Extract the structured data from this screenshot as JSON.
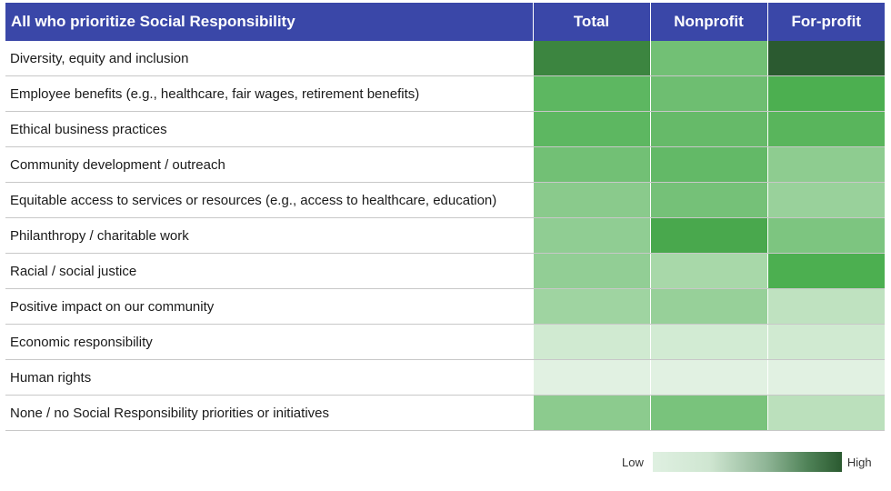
{
  "chart_data": {
    "type": "heatmap",
    "title": "All who prioritize Social Responsibility",
    "columns": [
      "Total",
      "Nonprofit",
      "For-profit"
    ],
    "rows": [
      {
        "label": "Diversity, equity and inclusion",
        "values": [
          0.88,
          0.58,
          1.0
        ]
      },
      {
        "label": "Employee benefits (e.g., healthcare, fair wages, retirement benefits)",
        "values": [
          0.68,
          0.6,
          0.76
        ]
      },
      {
        "label": "Ethical business practices",
        "values": [
          0.68,
          0.64,
          0.7
        ]
      },
      {
        "label": "Community development / outreach",
        "values": [
          0.58,
          0.65,
          0.45
        ]
      },
      {
        "label": "Equitable access to services or resources (e.g., access to healthcare, education)",
        "values": [
          0.47,
          0.57,
          0.4
        ]
      },
      {
        "label": "Philanthropy / charitable work",
        "values": [
          0.44,
          0.78,
          0.53
        ]
      },
      {
        "label": "Racial / social justice",
        "values": [
          0.43,
          0.33,
          0.76
        ]
      },
      {
        "label": "Positive impact on our community",
        "values": [
          0.37,
          0.41,
          0.22
        ]
      },
      {
        "label": "Economic responsibility",
        "values": [
          0.14,
          0.13,
          0.14
        ]
      },
      {
        "label": "Human rights",
        "values": [
          0.06,
          0.06,
          0.06
        ]
      },
      {
        "label": "None / no Social Responsibility priorities or initiatives",
        "values": [
          0.46,
          0.55,
          0.24
        ]
      }
    ],
    "color_scale": {
      "low": "#eef7ee",
      "high": "#2b5a30"
    },
    "legend": {
      "low_label": "Low",
      "high_label": "High",
      "placement": "bottom-right"
    }
  }
}
